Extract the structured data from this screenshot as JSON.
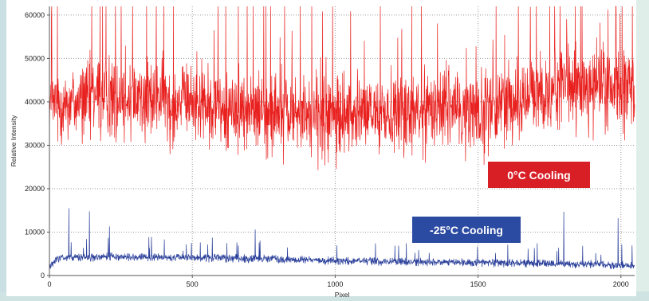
{
  "chart_data": {
    "type": "line",
    "xlabel": "Pixel",
    "ylabel": "Relative Intensity",
    "xlim": [
      0,
      2048
    ],
    "ylim": [
      0,
      62000
    ],
    "x_ticks": [
      "0",
      "500",
      "1000",
      "1500",
      "2000"
    ],
    "x_tick_values": [
      0,
      500,
      1000,
      1500,
      2000
    ],
    "y_ticks": [
      "0",
      "10000",
      "20000",
      "30000",
      "40000",
      "50000",
      "60000"
    ],
    "y_tick_values": [
      0,
      10000,
      20000,
      30000,
      40000,
      50000,
      60000
    ],
    "grid": true,
    "series": [
      {
        "name": "0°C Cooling",
        "color": "#e8201e",
        "baseline": [
          [
            0,
            39000
          ],
          [
            200,
            42000
          ],
          [
            400,
            41000
          ],
          [
            600,
            39000
          ],
          [
            800,
            38000
          ],
          [
            1000,
            36500
          ],
          [
            1200,
            38000
          ],
          [
            1400,
            39500
          ],
          [
            1500,
            38000
          ],
          [
            1700,
            42000
          ],
          [
            1850,
            44000
          ],
          [
            2048,
            43000
          ]
        ],
        "noise_amplitude": 6000,
        "spike_max": 62000
      },
      {
        "name": "-25°C Cooling",
        "color": "#2a3f9a",
        "baseline": [
          [
            0,
            2000
          ],
          [
            30,
            4000
          ],
          [
            200,
            4300
          ],
          [
            500,
            4100
          ],
          [
            800,
            3800
          ],
          [
            1000,
            3400
          ],
          [
            1300,
            3100
          ],
          [
            1600,
            2900
          ],
          [
            1900,
            2600
          ],
          [
            2048,
            2200
          ]
        ],
        "noise_amplitude": 900,
        "spikes": [
          [
            68,
            15500
          ],
          [
            140,
            14800
          ],
          [
            210,
            11300
          ],
          [
            720,
            10600
          ],
          [
            1800,
            14700
          ],
          [
            1990,
            13200
          ]
        ]
      }
    ]
  },
  "labels": {
    "warm": "0°C Cooling",
    "cold": "-25°C Cooling"
  },
  "colors": {
    "warm_badge": "#d81f26",
    "cold_badge": "#2b4aa1"
  }
}
